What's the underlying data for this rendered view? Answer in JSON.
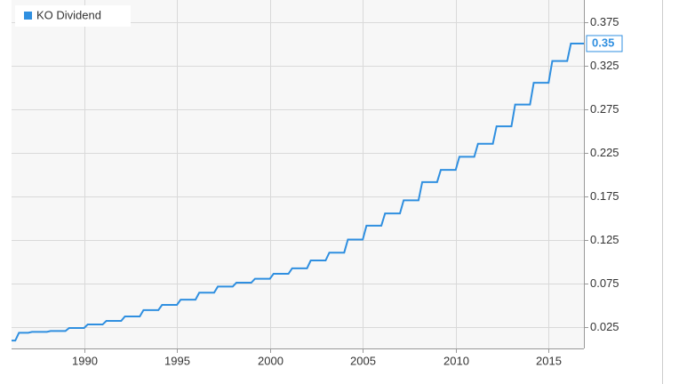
{
  "chart_data": {
    "type": "line",
    "legend": "top-left",
    "grid": true,
    "xlim": [
      1986.1,
      2016.9
    ],
    "xticks": [
      1990,
      1995,
      2000,
      2005,
      2010,
      2015
    ],
    "ylim": [
      0,
      0.4
    ],
    "yticks": [
      0.025,
      0.075,
      0.125,
      0.175,
      0.225,
      0.275,
      0.325,
      0.375
    ],
    "x": [
      1986.1,
      1986.3,
      1986.5,
      1987,
      1987.2,
      1988,
      1988.2,
      1989,
      1989.2,
      1990,
      1990.2,
      1991,
      1991.2,
      1992,
      1992.2,
      1993,
      1993.2,
      1994,
      1994.2,
      1995,
      1995.2,
      1996,
      1996.2,
      1997,
      1997.2,
      1998,
      1998.2,
      1999,
      1999.2,
      2000,
      2000.2,
      2001,
      2001.2,
      2002,
      2002.2,
      2003,
      2003.2,
      2004,
      2004.2,
      2005,
      2005.2,
      2006,
      2006.2,
      2007,
      2007.2,
      2008,
      2008.2,
      2009,
      2009.2,
      2010,
      2010.2,
      2011,
      2011.2,
      2012,
      2012.2,
      2013,
      2013.2,
      2014,
      2014.2,
      2015,
      2015.2,
      2016,
      2016.2,
      2016.9
    ],
    "series": [
      {
        "name": "KO Dividend",
        "color": "#2f8fe0",
        "values": [
          0.009,
          0.009,
          0.018,
          0.018,
          0.019,
          0.019,
          0.02,
          0.02,
          0.0235,
          0.0235,
          0.0275,
          0.0275,
          0.0316,
          0.0316,
          0.0367,
          0.0367,
          0.044,
          0.044,
          0.05,
          0.05,
          0.056,
          0.056,
          0.064,
          0.064,
          0.071,
          0.071,
          0.0755,
          0.0755,
          0.08,
          0.08,
          0.0857,
          0.0857,
          0.092,
          0.092,
          0.101,
          0.101,
          0.11,
          0.11,
          0.125,
          0.125,
          0.141,
          0.141,
          0.155,
          0.155,
          0.17,
          0.17,
          0.191,
          0.191,
          0.205,
          0.205,
          0.22,
          0.22,
          0.235,
          0.235,
          0.255,
          0.255,
          0.28,
          0.28,
          0.305,
          0.305,
          0.33,
          0.33,
          0.35,
          0.35
        ]
      }
    ]
  }
}
